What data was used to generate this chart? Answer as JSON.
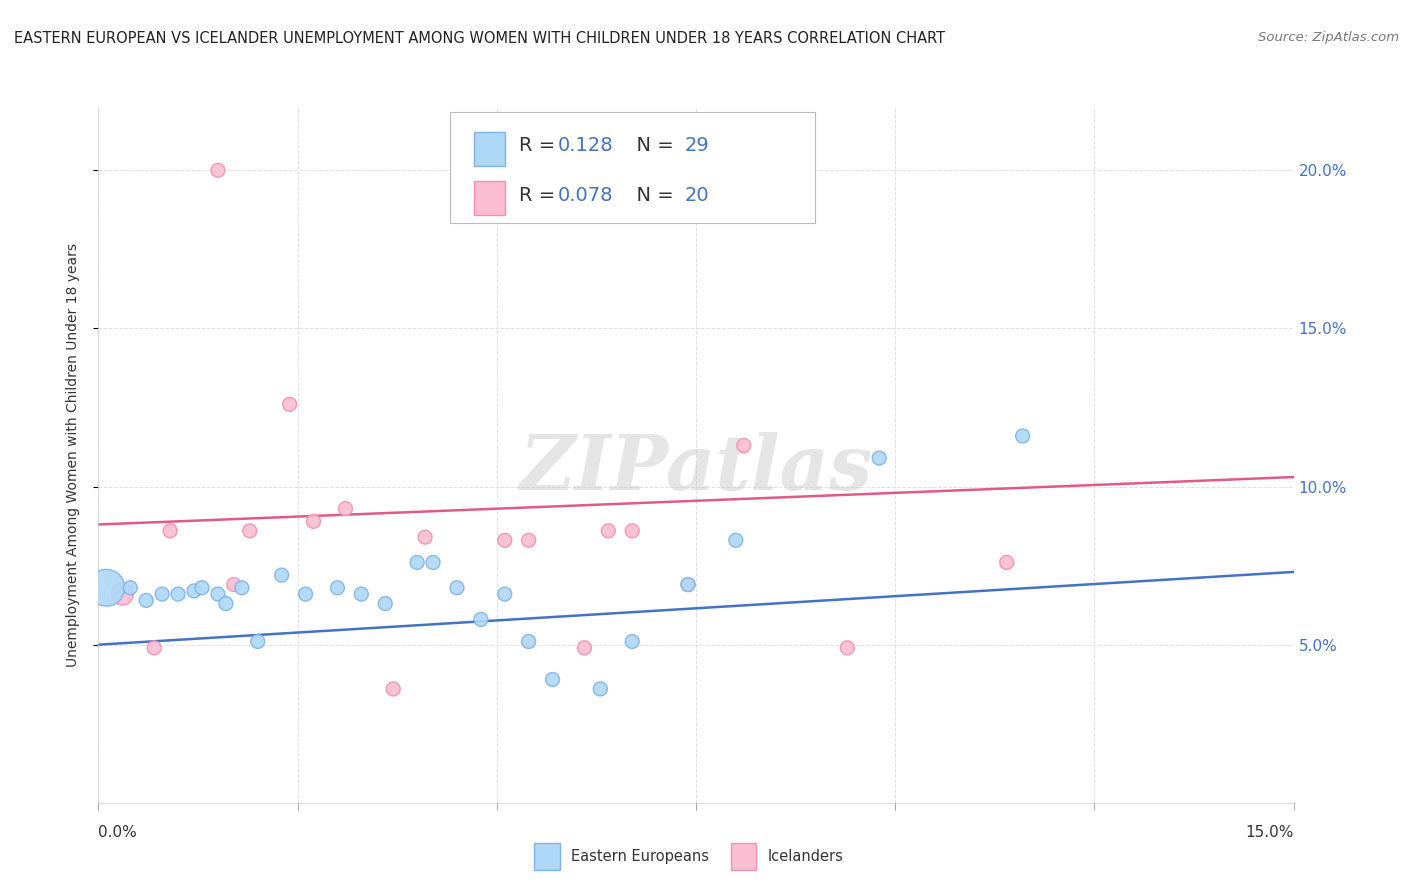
{
  "title": "EASTERN EUROPEAN VS ICELANDER UNEMPLOYMENT AMONG WOMEN WITH CHILDREN UNDER 18 YEARS CORRELATION CHART",
  "source": "Source: ZipAtlas.com",
  "ylabel": "Unemployment Among Women with Children Under 18 years",
  "xlim": [
    0.0,
    0.15
  ],
  "ylim": [
    0.0,
    0.22
  ],
  "yticks": [
    0.05,
    0.1,
    0.15,
    0.2
  ],
  "ytick_labels": [
    "5.0%",
    "10.0%",
    "15.0%",
    "20.0%"
  ],
  "background_color": "#ffffff",
  "grid_color": "#e0e0e0",
  "blue_color": "#7EB3E8",
  "blue_fill": "#ADD8F7",
  "pink_color": "#F48FB1",
  "pink_fill": "#FBBDD1",
  "blue_line_color": "#4472C4",
  "pink_line_color": "#E05A84",
  "legend_R_blue": "0.128",
  "legend_N_blue": "29",
  "legend_R_pink": "0.078",
  "legend_N_pink": "20",
  "blue_label": "Eastern Europeans",
  "pink_label": "Icelanders",
  "blue_scatter_x": [
    0.001,
    0.004,
    0.006,
    0.008,
    0.01,
    0.012,
    0.013,
    0.015,
    0.016,
    0.018,
    0.02,
    0.023,
    0.026,
    0.03,
    0.033,
    0.036,
    0.04,
    0.042,
    0.045,
    0.048,
    0.051,
    0.054,
    0.057,
    0.063,
    0.067,
    0.074,
    0.08,
    0.098,
    0.116
  ],
  "blue_scatter_y": [
    0.068,
    0.068,
    0.064,
    0.066,
    0.066,
    0.067,
    0.068,
    0.066,
    0.063,
    0.068,
    0.051,
    0.072,
    0.066,
    0.068,
    0.066,
    0.063,
    0.076,
    0.076,
    0.068,
    0.058,
    0.066,
    0.051,
    0.039,
    0.036,
    0.051,
    0.069,
    0.083,
    0.109,
    0.116
  ],
  "blue_scatter_size": [
    700,
    100,
    100,
    100,
    100,
    100,
    100,
    100,
    100,
    100,
    100,
    100,
    100,
    100,
    100,
    100,
    100,
    100,
    100,
    100,
    100,
    100,
    100,
    100,
    100,
    100,
    100,
    100,
    100
  ],
  "pink_scatter_x": [
    0.003,
    0.007,
    0.009,
    0.015,
    0.017,
    0.019,
    0.024,
    0.027,
    0.031,
    0.037,
    0.041,
    0.051,
    0.054,
    0.061,
    0.064,
    0.067,
    0.074,
    0.081,
    0.094,
    0.114
  ],
  "pink_scatter_y": [
    0.066,
    0.049,
    0.086,
    0.2,
    0.069,
    0.086,
    0.126,
    0.089,
    0.093,
    0.036,
    0.084,
    0.083,
    0.083,
    0.049,
    0.086,
    0.086,
    0.069,
    0.113,
    0.049,
    0.076
  ],
  "pink_scatter_size": [
    250,
    100,
    100,
    100,
    100,
    100,
    100,
    100,
    100,
    100,
    100,
    100,
    100,
    100,
    100,
    100,
    100,
    100,
    100,
    100
  ],
  "blue_line_y_start": 0.05,
  "blue_line_y_end": 0.073,
  "pink_line_y_start": 0.088,
  "pink_line_y_end": 0.103,
  "watermark_text": "ZIPatlas",
  "tick_color": "#4472C4",
  "title_fontsize": 10.5,
  "source_fontsize": 9.5,
  "ylabel_fontsize": 10
}
